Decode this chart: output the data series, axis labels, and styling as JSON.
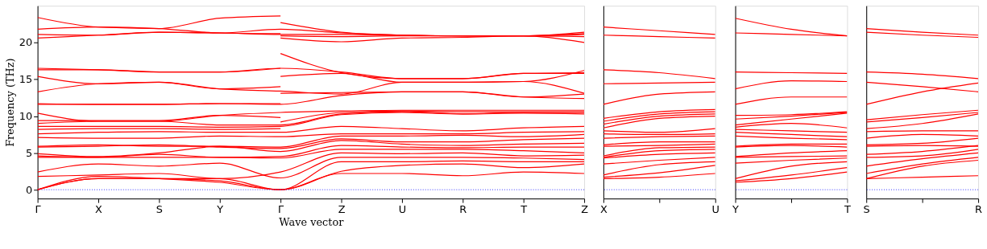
{
  "chart_data": [
    {
      "type": "line",
      "xlabel": "Wave vector",
      "ylabel": "Frequency (THz)",
      "ylim": [
        -1.2,
        25
      ],
      "grid": false,
      "line_style": "solid",
      "marker": "none",
      "categories": [
        "Γ",
        "X",
        "S",
        "Y",
        "Γ",
        "Z",
        "U",
        "R",
        "T",
        "Z"
      ],
      "yticks": [
        0,
        5,
        10,
        15,
        20
      ],
      "ref_lines": [
        {
          "axis": "y",
          "value": 0,
          "color": "#0000ff",
          "line_style": "dotted"
        }
      ],
      "series": [
        {
          "color": "#ff0000",
          "values": [
            0,
            1.5,
            1.5,
            1.2,
            0,
            2.2,
            2.2,
            1.9,
            2.4,
            2.2
          ]
        },
        {
          "color": "#ff0000",
          "values": [
            0,
            1.5,
            1.5,
            1.5,
            0,
            2.5,
            3.3,
            3.5,
            3.0,
            3.5
          ]
        },
        {
          "color": "#ff0000",
          "values": [
            0,
            1.8,
            1.5,
            1.0,
            0,
            3.8,
            3.8,
            3.9,
            3.8,
            3.8
          ]
        },
        {
          "color": "#ff0000",
          "values": [
            2.4,
            3.5,
            3.2,
            3.6,
            1.6,
            4.4,
            4.4,
            4.4,
            4.3,
            4.1
          ]
        },
        {
          "color": "#ff0000",
          "values": [
            1.8,
            2.0,
            2.2,
            1.5,
            2.4,
            5.0,
            4.9,
            5.0,
            4.6,
            4.7
          ]
        },
        {
          "color": "#ff0000",
          "values": [
            4.4,
            4.4,
            4.4,
            4.4,
            4.3,
            5.5,
            5.5,
            5.5,
            5.3,
            5.0
          ]
        },
        {
          "color": "#ff0000",
          "values": [
            4.6,
            4.4,
            4.8,
            4.4,
            4.5,
            6.0,
            5.8,
            5.7,
            5.8,
            5.8
          ]
        },
        {
          "color": "#ff0000",
          "values": [
            4.9,
            4.5,
            5.0,
            5.9,
            5.2,
            6.7,
            6.2,
            6.0,
            6.2,
            6.3
          ]
        },
        {
          "color": "#ff0000",
          "values": [
            5.8,
            5.9,
            6.1,
            5.8,
            5.6,
            6.9,
            6.5,
            6.5,
            6.8,
            7.0
          ]
        },
        {
          "color": "#ff0000",
          "values": [
            5.9,
            6.1,
            5.9,
            5.9,
            5.8,
            7.3,
            7.3,
            7.4,
            7.2,
            7.5
          ]
        },
        {
          "color": "#ff0000",
          "values": [
            7.1,
            7.0,
            7.0,
            7.3,
            7.2,
            7.6,
            7.6,
            7.6,
            7.8,
            7.9
          ]
        },
        {
          "color": "#ff0000",
          "values": [
            7.6,
            7.8,
            7.9,
            7.8,
            7.8,
            8.6,
            8.3,
            8.0,
            8.4,
            8.6
          ]
        },
        {
          "color": "#ff0000",
          "values": [
            8.2,
            8.3,
            8.3,
            8.2,
            8.3,
            null,
            null,
            null,
            null,
            null
          ]
        },
        {
          "color": "#ff0000",
          "values": [
            8.6,
            8.6,
            8.6,
            8.5,
            8.6,
            10.2,
            10.5,
            10.3,
            10.4,
            10.3
          ]
        },
        {
          "color": "#ff0000",
          "values": [
            9.0,
            9.3,
            9.3,
            8.8,
            8.8,
            10.3,
            10.6,
            10.3,
            10.5,
            10.5
          ]
        },
        {
          "color": "#ff0000",
          "values": [
            9.4,
            9.4,
            9.4,
            10.1,
            9.8,
            null,
            null,
            null,
            null,
            null
          ]
        },
        {
          "color": "#ff0000",
          "values": [
            null,
            null,
            null,
            null,
            9.2,
            10.5,
            10.7,
            10.6,
            10.6,
            10.6
          ]
        },
        {
          "color": "#ff0000",
          "values": [
            10.4,
            9.3,
            9.3,
            10.1,
            10.5,
            10.7,
            10.8,
            10.8,
            10.8,
            10.8
          ]
        },
        {
          "color": "#ff0000",
          "values": [
            11.6,
            11.6,
            11.6,
            11.7,
            11.6,
            12.8,
            13.3,
            13.3,
            12.6,
            12.4
          ]
        },
        {
          "color": "#ff0000",
          "values": [
            11.7,
            11.6,
            11.6,
            11.7,
            11.7,
            null,
            null,
            null,
            null,
            null
          ]
        },
        {
          "color": "#ff0000",
          "values": [
            null,
            null,
            null,
            null,
            13.1,
            13.2,
            13.3,
            13.3,
            12.6,
            13.0
          ]
        },
        {
          "color": "#ff0000",
          "values": [
            13.3,
            14.4,
            14.6,
            13.7,
            14.0,
            null,
            null,
            null,
            null,
            null
          ]
        },
        {
          "color": "#ff0000",
          "values": [
            15.4,
            14.4,
            14.6,
            13.7,
            13.4,
            13.0,
            14.6,
            14.6,
            14.7,
            13.1
          ]
        },
        {
          "color": "#ff0000",
          "values": [
            null,
            null,
            null,
            null,
            15.4,
            15.8,
            14.6,
            14.6,
            14.7,
            16.2
          ]
        },
        {
          "color": "#ff0000",
          "values": [
            16.3,
            16.3,
            16.0,
            16.0,
            16.5,
            16.0,
            15.1,
            15.1,
            15.8,
            15.9
          ]
        },
        {
          "color": "#ff0000",
          "values": [
            16.5,
            16.3,
            16.0,
            16.0,
            16.5,
            null,
            null,
            null,
            null,
            null
          ]
        },
        {
          "color": "#ff0000",
          "values": [
            null,
            null,
            null,
            null,
            18.5,
            15.9,
            15.1,
            15.1,
            15.8,
            15.8
          ]
        },
        {
          "color": "#ff0000",
          "values": [
            null,
            null,
            null,
            null,
            20.6,
            20.1,
            20.6,
            20.7,
            20.9,
            20.0
          ]
        },
        {
          "color": "#ff0000",
          "values": [
            null,
            null,
            null,
            null,
            20.9,
            20.8,
            20.9,
            20.9,
            20.9,
            20.8
          ]
        },
        {
          "color": "#ff0000",
          "values": [
            21.1,
            21.0,
            21.4,
            21.3,
            21.1,
            21.1,
            21.0,
            20.9,
            20.9,
            21.2
          ]
        },
        {
          "color": "#ff0000",
          "values": [
            20.6,
            21.0,
            21.4,
            21.3,
            21.8,
            21.3,
            21.0,
            20.9,
            20.9,
            21.4
          ]
        },
        {
          "color": "#ff0000",
          "values": [
            21.8,
            22.1,
            21.9,
            21.3,
            21.2,
            null,
            null,
            null,
            null,
            null
          ]
        },
        {
          "color": "#ff0000",
          "values": [
            null,
            null,
            null,
            null,
            22.7,
            21.4,
            21.0,
            20.9,
            20.9,
            21.1
          ]
        },
        {
          "color": "#ff0000",
          "values": [
            23.4,
            22.1,
            21.9,
            23.3,
            23.6,
            null,
            null,
            null,
            null,
            null
          ]
        }
      ]
    },
    {
      "type": "line",
      "ylim": [
        -1.2,
        25
      ],
      "tick_labels": "x",
      "grid": false,
      "line_style": "solid",
      "marker": "none",
      "categories": [
        "X",
        null,
        "U"
      ],
      "ref_lines": [
        {
          "axis": "y",
          "value": 0,
          "color": "#0000ff",
          "line_style": "dotted"
        }
      ],
      "series": [
        {
          "color": "#ff0000",
          "values": [
            1.5,
            1.7,
            2.2
          ]
        },
        {
          "color": "#ff0000",
          "values": [
            1.7,
            2.3,
            3.3
          ]
        },
        {
          "color": "#ff0000",
          "values": [
            2.0,
            3.4,
            3.8
          ]
        },
        {
          "color": "#ff0000",
          "values": [
            3.5,
            4.0,
            4.4
          ]
        },
        {
          "color": "#ff0000",
          "values": [
            4.3,
            4.8,
            5.0
          ]
        },
        {
          "color": "#ff0000",
          "values": [
            4.4,
            5.3,
            5.5
          ]
        },
        {
          "color": "#ff0000",
          "values": [
            4.6,
            5.7,
            5.8
          ]
        },
        {
          "color": "#ff0000",
          "values": [
            5.9,
            6.0,
            6.2
          ]
        },
        {
          "color": "#ff0000",
          "values": [
            6.1,
            6.5,
            6.5
          ]
        },
        {
          "color": "#ff0000",
          "values": [
            7.0,
            7.2,
            7.3
          ]
        },
        {
          "color": "#ff0000",
          "values": [
            7.6,
            7.5,
            7.6
          ]
        },
        {
          "color": "#ff0000",
          "values": [
            8.0,
            7.8,
            8.3
          ]
        },
        {
          "color": "#ff0000",
          "values": [
            8.4,
            9.7,
            10.0
          ]
        },
        {
          "color": "#ff0000",
          "values": [
            8.9,
            10.0,
            10.3
          ]
        },
        {
          "color": "#ff0000",
          "values": [
            9.3,
            10.3,
            10.6
          ]
        },
        {
          "color": "#ff0000",
          "values": [
            9.7,
            10.6,
            10.9
          ]
        },
        {
          "color": "#ff0000",
          "values": [
            11.6,
            13.0,
            13.3
          ]
        },
        {
          "color": "#ff0000",
          "values": [
            14.4,
            14.5,
            14.6
          ]
        },
        {
          "color": "#ff0000",
          "values": [
            16.3,
            15.9,
            15.1
          ]
        },
        {
          "color": "#ff0000",
          "values": [
            21.0,
            20.8,
            20.6
          ]
        },
        {
          "color": "#ff0000",
          "values": [
            22.1,
            21.6,
            21.1
          ]
        }
      ]
    },
    {
      "type": "line",
      "ylim": [
        -1.2,
        25
      ],
      "tick_labels": "x",
      "grid": false,
      "line_style": "solid",
      "marker": "none",
      "categories": [
        "Y",
        null,
        "T"
      ],
      "ref_lines": [
        {
          "axis": "y",
          "value": 0,
          "color": "#0000ff",
          "line_style": "dotted"
        }
      ],
      "series": [
        {
          "color": "#ff0000",
          "values": [
            1.0,
            1.5,
            2.4
          ]
        },
        {
          "color": "#ff0000",
          "values": [
            1.2,
            2.0,
            3.0
          ]
        },
        {
          "color": "#ff0000",
          "values": [
            1.5,
            3.2,
            3.8
          ]
        },
        {
          "color": "#ff0000",
          "values": [
            3.6,
            4.0,
            4.3
          ]
        },
        {
          "color": "#ff0000",
          "values": [
            4.4,
            4.5,
            4.6
          ]
        },
        {
          "color": "#ff0000",
          "values": [
            4.5,
            5.0,
            5.3
          ]
        },
        {
          "color": "#ff0000",
          "values": [
            5.8,
            6.0,
            5.8
          ]
        },
        {
          "color": "#ff0000",
          "values": [
            5.9,
            6.2,
            6.2
          ]
        },
        {
          "color": "#ff0000",
          "values": [
            7.3,
            7.0,
            6.8
          ]
        },
        {
          "color": "#ff0000",
          "values": [
            7.8,
            7.5,
            7.2
          ]
        },
        {
          "color": "#ff0000",
          "values": [
            8.2,
            8.0,
            7.8
          ]
        },
        {
          "color": "#ff0000",
          "values": [
            8.5,
            9.0,
            8.4
          ]
        },
        {
          "color": "#ff0000",
          "values": [
            8.8,
            9.6,
            10.4
          ]
        },
        {
          "color": "#ff0000",
          "values": [
            9.6,
            10.0,
            10.5
          ]
        },
        {
          "color": "#ff0000",
          "values": [
            10.1,
            10.2,
            10.6
          ]
        },
        {
          "color": "#ff0000",
          "values": [
            11.6,
            12.6,
            12.6
          ]
        },
        {
          "color": "#ff0000",
          "values": [
            13.7,
            14.8,
            14.7
          ]
        },
        {
          "color": "#ff0000",
          "values": [
            16.0,
            15.9,
            15.8
          ]
        },
        {
          "color": "#ff0000",
          "values": [
            21.3,
            21.1,
            20.9
          ]
        },
        {
          "color": "#ff0000",
          "values": [
            23.3,
            21.8,
            20.9
          ]
        }
      ]
    },
    {
      "type": "line",
      "ylim": [
        -1.2,
        25
      ],
      "tick_labels": "x",
      "grid": false,
      "line_style": "solid",
      "marker": "none",
      "categories": [
        "S",
        null,
        "R"
      ],
      "ref_lines": [
        {
          "axis": "y",
          "value": 0,
          "color": "#0000ff",
          "line_style": "dotted"
        }
      ],
      "series": [
        {
          "color": "#ff0000",
          "values": [
            1.5,
            1.7,
            1.9
          ]
        },
        {
          "color": "#ff0000",
          "values": [
            1.5,
            3.2,
            4.0
          ]
        },
        {
          "color": "#ff0000",
          "values": [
            2.2,
            3.5,
            4.4
          ]
        },
        {
          "color": "#ff0000",
          "values": [
            3.2,
            4.2,
            5.0
          ]
        },
        {
          "color": "#ff0000",
          "values": [
            4.4,
            4.6,
            5.5
          ]
        },
        {
          "color": "#ff0000",
          "values": [
            4.8,
            5.2,
            6.0
          ]
        },
        {
          "color": "#ff0000",
          "values": [
            6.1,
            6.3,
            7.0
          ]
        },
        {
          "color": "#ff0000",
          "values": [
            5.9,
            6.0,
            5.9
          ]
        },
        {
          "color": "#ff0000",
          "values": [
            7.0,
            7.5,
            7.3
          ]
        },
        {
          "color": "#ff0000",
          "values": [
            7.9,
            8.0,
            8.0
          ]
        },
        {
          "color": "#ff0000",
          "values": [
            8.3,
            9.0,
            10.3
          ]
        },
        {
          "color": "#ff0000",
          "values": [
            9.2,
            9.8,
            10.5
          ]
        },
        {
          "color": "#ff0000",
          "values": [
            9.5,
            10.2,
            10.8
          ]
        },
        {
          "color": "#ff0000",
          "values": [
            11.6,
            13.3,
            14.5
          ]
        },
        {
          "color": "#ff0000",
          "values": [
            14.6,
            14.0,
            13.3
          ]
        },
        {
          "color": "#ff0000",
          "values": [
            16.0,
            15.7,
            15.1
          ]
        },
        {
          "color": "#ff0000",
          "values": [
            21.4,
            21.0,
            20.7
          ]
        },
        {
          "color": "#ff0000",
          "values": [
            21.9,
            21.4,
            21.0
          ]
        }
      ]
    }
  ]
}
